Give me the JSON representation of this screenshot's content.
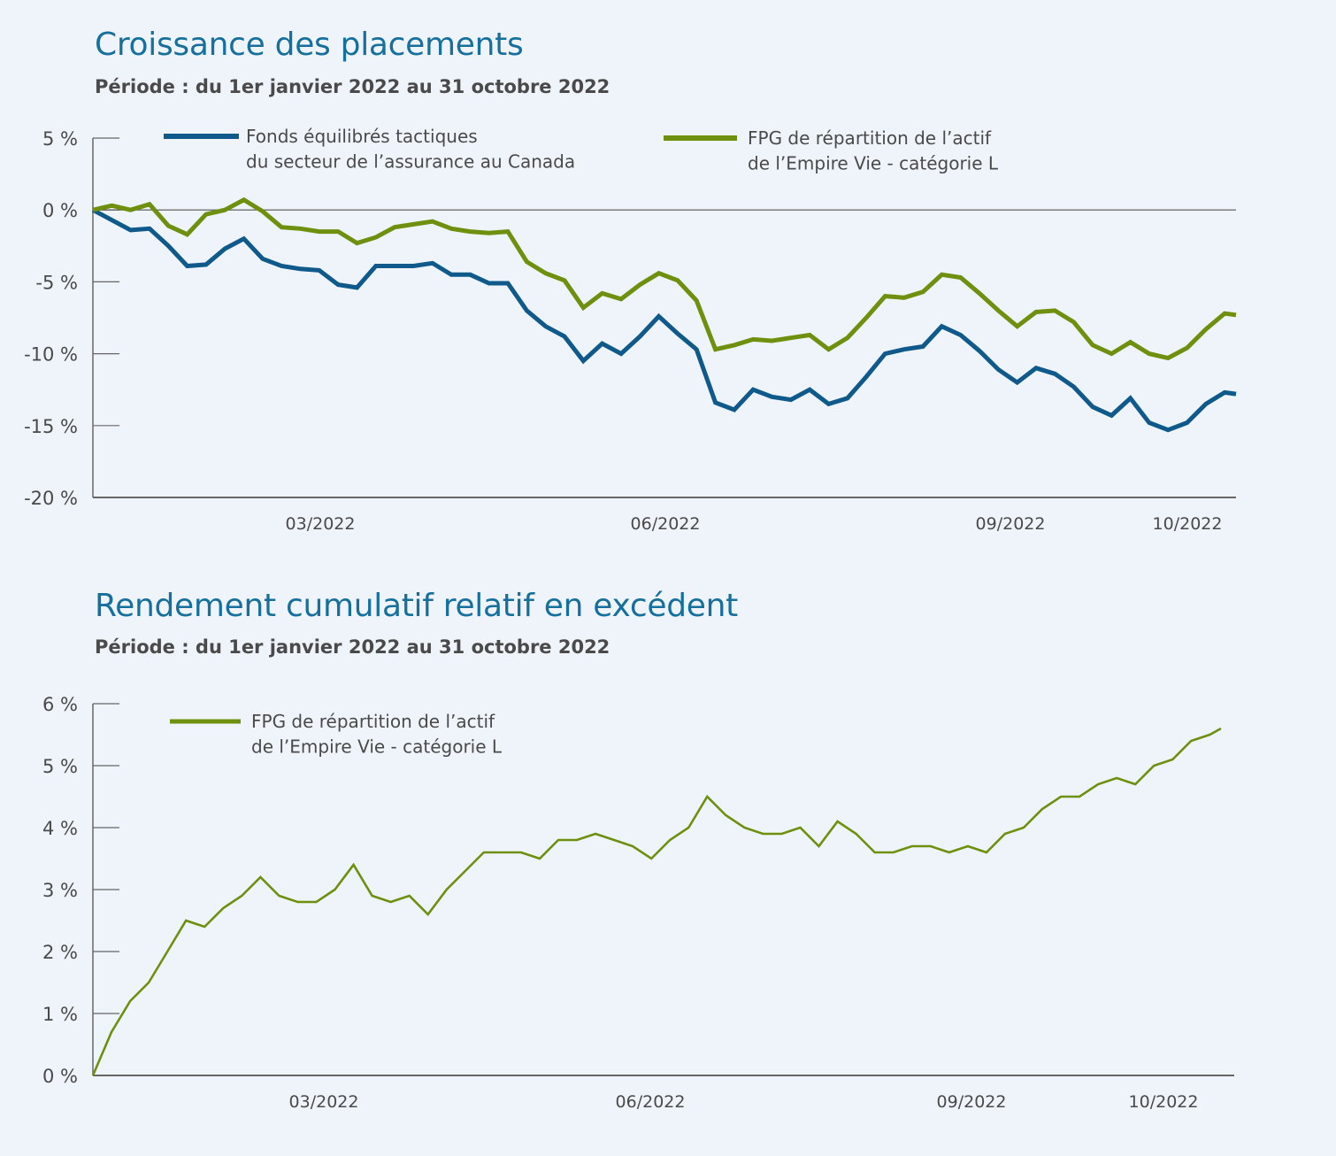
{
  "colors": {
    "title": "#17709c",
    "blue_series": "#0f5a8a",
    "green_series": "#6f8f0e",
    "background": "#eef4fa",
    "axis": "#666666"
  },
  "chart_data": [
    {
      "type": "line",
      "title": "Croissance des placements",
      "subtitle": "Période : du 1er janvier 2022 au 31 octobre 2022",
      "xlabel": "",
      "ylabel": "",
      "ylim": [
        -20,
        5
      ],
      "y_ticks": [
        5,
        0,
        -5,
        -10,
        -15,
        -20
      ],
      "y_tick_labels": [
        "5 %",
        "0 %",
        "-5 %",
        "-10 %",
        "-15 %",
        "-20 %"
      ],
      "x_tick_labels": [
        "03/2022",
        "06/2022",
        "09/2022",
        "10/2022"
      ],
      "grid": false,
      "legend_position": "top",
      "x": [
        "2022-01-01",
        "2022-01-06",
        "2022-01-11",
        "2022-01-16",
        "2022-01-21",
        "2022-01-26",
        "2022-01-31",
        "2022-02-05",
        "2022-02-10",
        "2022-02-15",
        "2022-02-20",
        "2022-02-25",
        "2022-03-02",
        "2022-03-07",
        "2022-03-12",
        "2022-03-17",
        "2022-03-22",
        "2022-03-27",
        "2022-04-01",
        "2022-04-06",
        "2022-04-11",
        "2022-04-16",
        "2022-04-21",
        "2022-04-26",
        "2022-05-01",
        "2022-05-06",
        "2022-05-11",
        "2022-05-16",
        "2022-05-21",
        "2022-05-26",
        "2022-05-31",
        "2022-06-05",
        "2022-06-10",
        "2022-06-15",
        "2022-06-20",
        "2022-06-25",
        "2022-06-30",
        "2022-07-05",
        "2022-07-10",
        "2022-07-15",
        "2022-07-20",
        "2022-07-25",
        "2022-07-30",
        "2022-08-04",
        "2022-08-09",
        "2022-08-14",
        "2022-08-19",
        "2022-08-24",
        "2022-08-29",
        "2022-09-03",
        "2022-09-08",
        "2022-09-13",
        "2022-09-18",
        "2022-09-23",
        "2022-09-28",
        "2022-10-03",
        "2022-10-08",
        "2022-10-13",
        "2022-10-18",
        "2022-10-23",
        "2022-10-28",
        "2022-10-31"
      ],
      "series": [
        {
          "name": "Fonds équilibrés tactiques du secteur de l’assurance au Canada",
          "legend_lines": [
            "Fonds équilibrés tactiques",
            "du secteur de l’assurance au Canada"
          ],
          "color": "#0f5a8a",
          "values": [
            0,
            -0.7,
            -1.4,
            -1.3,
            -2.5,
            -3.9,
            -3.8,
            -2.7,
            -2.0,
            -3.4,
            -3.9,
            -4.1,
            -4.2,
            -5.2,
            -5.4,
            -3.9,
            -3.9,
            -3.9,
            -3.7,
            -4.5,
            -4.5,
            -5.1,
            -5.1,
            -7.0,
            -8.1,
            -8.8,
            -10.5,
            -9.3,
            -10.0,
            -8.8,
            -7.4,
            -8.6,
            -9.7,
            -13.4,
            -13.9,
            -12.5,
            -13.0,
            -13.2,
            -12.5,
            -13.5,
            -13.1,
            -11.6,
            -10.0,
            -9.7,
            -9.5,
            -8.1,
            -8.7,
            -9.8,
            -11.1,
            -12.0,
            -11.0,
            -11.4,
            -12.3,
            -13.7,
            -14.3,
            -13.1,
            -14.8,
            -15.3,
            -14.8,
            -13.5,
            -12.7,
            -12.8
          ]
        },
        {
          "name": "FPG de répartition de l’actif de l’Empire Vie - catégorie L",
          "legend_lines": [
            "FPG de répartition de l’actif",
            "de l’Empire Vie - catégorie L"
          ],
          "color": "#6f8f0e",
          "values": [
            0,
            0.3,
            0,
            0.4,
            -1.1,
            -1.7,
            -0.3,
            0,
            0.7,
            -0.1,
            -1.2,
            -1.3,
            -1.5,
            -1.5,
            -2.3,
            -1.9,
            -1.2,
            -1.0,
            -0.8,
            -1.3,
            -1.5,
            -1.6,
            -1.5,
            -3.6,
            -4.4,
            -4.9,
            -6.8,
            -5.8,
            -6.2,
            -5.2,
            -4.4,
            -4.9,
            -6.3,
            -9.7,
            -9.4,
            -9.0,
            -9.1,
            -8.9,
            -8.7,
            -9.7,
            -8.9,
            -7.5,
            -6.0,
            -6.1,
            -5.7,
            -4.5,
            -4.7,
            -5.8,
            -7.0,
            -8.1,
            -7.1,
            -7.0,
            -7.8,
            -9.4,
            -10.0,
            -9.2,
            -10.0,
            -10.3,
            -9.6,
            -8.3,
            -7.2,
            -7.3
          ]
        }
      ]
    },
    {
      "type": "line",
      "title": "Rendement cumulatif relatif en excédent",
      "subtitle": "Période : du 1er janvier 2022 au 31 octobre 2022",
      "xlabel": "",
      "ylabel": "",
      "ylim": [
        0,
        6
      ],
      "y_ticks": [
        6,
        5,
        4,
        3,
        2,
        1,
        0
      ],
      "y_tick_labels": [
        "6 %",
        "5 %",
        "4 %",
        "3 %",
        "2 %",
        "1 %",
        "0 %"
      ],
      "x_tick_labels": [
        "03/2022",
        "06/2022",
        "09/2022",
        "10/2022"
      ],
      "grid": false,
      "legend_position": "top-left",
      "x": [
        "2022-01-01",
        "2022-01-06",
        "2022-01-11",
        "2022-01-16",
        "2022-01-21",
        "2022-01-26",
        "2022-01-31",
        "2022-02-05",
        "2022-02-10",
        "2022-02-15",
        "2022-02-20",
        "2022-02-25",
        "2022-03-02",
        "2022-03-07",
        "2022-03-12",
        "2022-03-17",
        "2022-03-22",
        "2022-03-27",
        "2022-04-01",
        "2022-04-06",
        "2022-04-11",
        "2022-04-16",
        "2022-04-21",
        "2022-04-26",
        "2022-05-01",
        "2022-05-06",
        "2022-05-11",
        "2022-05-16",
        "2022-05-21",
        "2022-05-26",
        "2022-05-31",
        "2022-06-05",
        "2022-06-10",
        "2022-06-15",
        "2022-06-20",
        "2022-06-25",
        "2022-06-30",
        "2022-07-05",
        "2022-07-10",
        "2022-07-15",
        "2022-07-20",
        "2022-07-25",
        "2022-07-30",
        "2022-08-04",
        "2022-08-09",
        "2022-08-14",
        "2022-08-19",
        "2022-08-24",
        "2022-08-29",
        "2022-09-03",
        "2022-09-08",
        "2022-09-13",
        "2022-09-18",
        "2022-09-23",
        "2022-09-28",
        "2022-10-03",
        "2022-10-08",
        "2022-10-13",
        "2022-10-18",
        "2022-10-23",
        "2022-10-28",
        "2022-10-31"
      ],
      "series": [
        {
          "name": "FPG de répartition de l’actif de l’Empire Vie - catégorie L",
          "legend_lines": [
            "FPG de répartition de l’actif",
            "de l’Empire Vie - catégorie L"
          ],
          "color": "#6f8f0e",
          "values": [
            0,
            0.7,
            1.2,
            1.5,
            2.0,
            2.5,
            2.4,
            2.7,
            2.9,
            3.2,
            2.9,
            2.8,
            2.8,
            3.0,
            3.4,
            2.9,
            2.8,
            2.9,
            2.6,
            3.0,
            3.3,
            3.6,
            3.6,
            3.6,
            3.5,
            3.8,
            3.8,
            3.9,
            3.8,
            3.7,
            3.5,
            3.8,
            4.0,
            4.5,
            4.2,
            4.0,
            3.9,
            3.9,
            4.0,
            3.7,
            4.1,
            3.9,
            3.6,
            3.6,
            3.7,
            3.7,
            3.6,
            3.7,
            3.6,
            3.9,
            4.0,
            4.3,
            4.5,
            4.5,
            4.7,
            4.8,
            4.7,
            5.0,
            5.1,
            5.4,
            5.5,
            5.6
          ]
        }
      ]
    }
  ]
}
